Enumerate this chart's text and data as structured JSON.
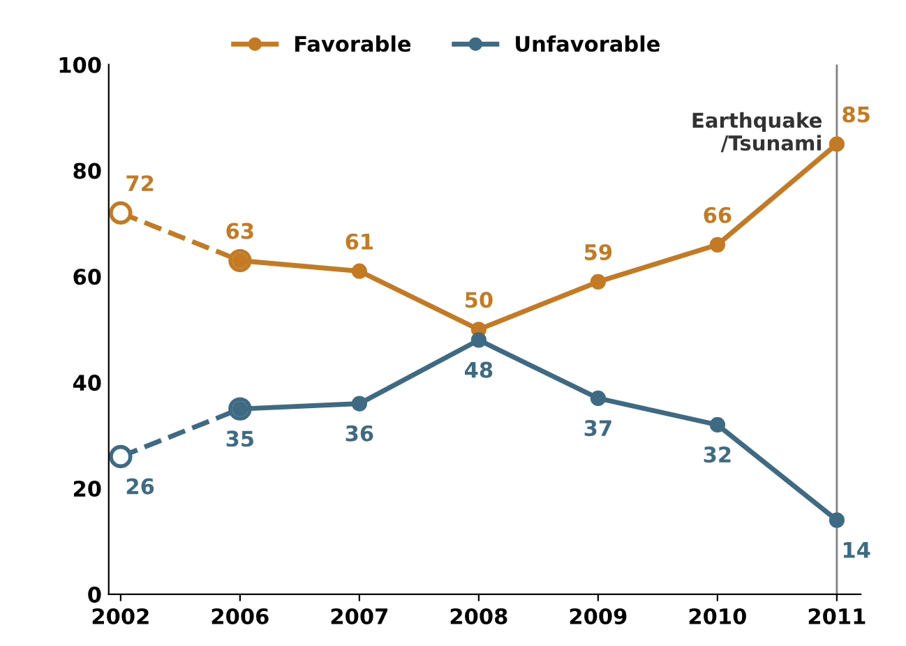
{
  "chart_data": {
    "type": "line",
    "categories": [
      "2002",
      "2006",
      "2007",
      "2008",
      "2009",
      "2010",
      "2011"
    ],
    "series": [
      {
        "name": "Favorable",
        "color": "#c47a22",
        "values": [
          null,
          63,
          61,
          50,
          59,
          66,
          85
        ],
        "value_labels": [
          null,
          "63",
          "61",
          "50",
          "59",
          "66",
          "85"
        ],
        "line_style": "solid"
      },
      {
        "color": "#c47a22",
        "values": [
          72,
          63,
          null,
          null,
          null,
          null,
          null
        ],
        "value_labels": [
          "72",
          null,
          null,
          null,
          null,
          null,
          null
        ],
        "line_style": "dashed"
      },
      {
        "name": "Unfavorable",
        "color": "#3e6a84",
        "values": [
          null,
          35,
          36,
          48,
          37,
          32,
          14
        ],
        "value_labels": [
          null,
          "35",
          "36",
          "48",
          "37",
          "32",
          "14"
        ],
        "line_style": "solid"
      },
      {
        "color": "#3e6a84",
        "values": [
          26,
          35,
          null,
          null,
          null,
          null,
          null
        ],
        "value_labels": [
          "26",
          null,
          null,
          null,
          null,
          null,
          null
        ],
        "line_style": "dashed"
      }
    ],
    "ylim": [
      0,
      100
    ],
    "yticks": [
      0,
      20,
      40,
      60,
      80,
      100
    ],
    "marker": "circle",
    "grid": false,
    "legend": "top",
    "ref_lines": [
      {
        "axis": "x",
        "value": "2011",
        "label": "Earthquake\n/Tsunami",
        "color": "#808080"
      }
    ]
  }
}
